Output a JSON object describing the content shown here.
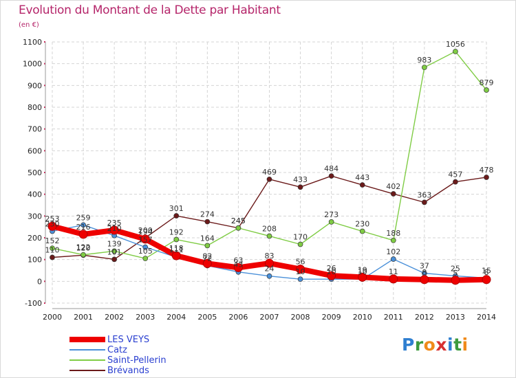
{
  "header": {
    "title": "Evolution du Montant de la Dette par Habitant",
    "unit": "(en €)"
  },
  "logo": {
    "letters": [
      "P",
      "r",
      "o",
      "x",
      "i",
      "t",
      "i"
    ],
    "colors": [
      "#2f7fd0",
      "#3d9a3d",
      "#f08a1a",
      "#d83030",
      "#2f7fd0",
      "#3d9a3d",
      "#f08a1a"
    ]
  },
  "chart_data": {
    "type": "line",
    "title": "Evolution du Montant de la Dette par Habitant",
    "subtitle": "(en €)",
    "xlabel": "",
    "ylabel": "",
    "x": [
      "2000",
      "2001",
      "2002",
      "2003",
      "2004",
      "2005",
      "2006",
      "2007",
      "2008",
      "2009",
      "2010",
      "2011",
      "2012",
      "2013",
      "2014"
    ],
    "ylim": [
      -100,
      1100
    ],
    "yticks": [
      -100,
      0,
      100,
      200,
      300,
      400,
      500,
      600,
      700,
      800,
      900,
      1000,
      1100
    ],
    "grid": true,
    "legend_position": "bottom-left",
    "series": [
      {
        "name": "LES VEYS",
        "color": "#ee0000",
        "values": [
          253,
          216,
          235,
          194,
          118,
          82,
          63,
          83,
          56,
          26,
          19,
          11,
          8,
          5,
          8
        ]
      },
      {
        "name": "Catz",
        "color": "#4a90d9",
        "values": [
          230,
          259,
          210,
          157,
          111,
          72,
          43,
          24,
          10,
          10,
          10,
          102,
          37,
          25,
          15
        ]
      },
      {
        "name": "Saint-Pellerin",
        "color": "#7fcc44",
        "values": [
          152,
          122,
          139,
          105,
          192,
          164,
          245,
          208,
          170,
          273,
          230,
          188,
          983,
          1056,
          879
        ]
      },
      {
        "name": "Brévands",
        "color": "#6b1a1a",
        "values": [
          110,
          120,
          101,
          200,
          301,
          274,
          245,
          469,
          433,
          484,
          443,
          402,
          363,
          457,
          478
        ]
      }
    ]
  }
}
